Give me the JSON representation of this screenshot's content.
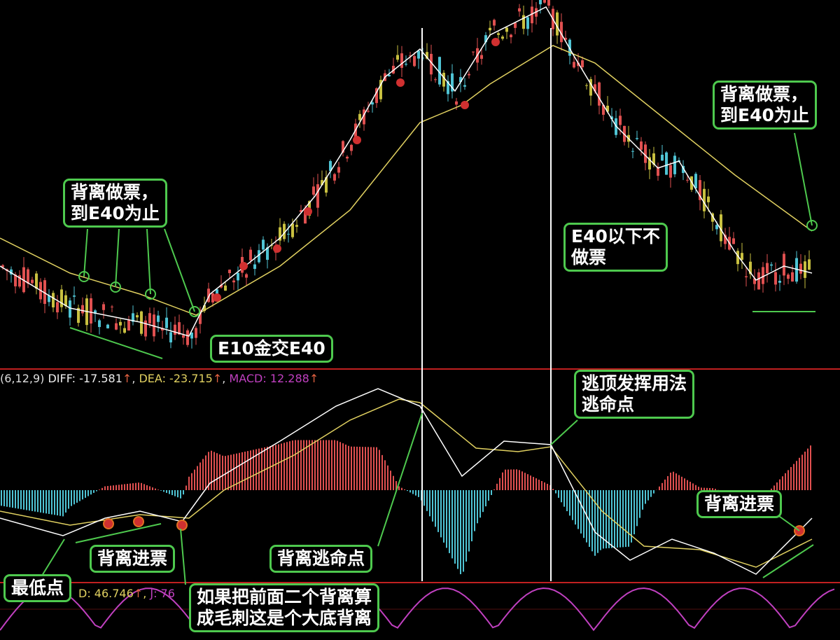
{
  "chart_data": {
    "type": "candlestick",
    "panels": [
      "price",
      "MACD",
      "KDJ"
    ],
    "grid": false,
    "price": {
      "E10": [
        [
          0,
          28
        ],
        [
          100,
          16
        ],
        [
          200,
          12
        ],
        [
          270,
          8
        ],
        [
          300,
          20
        ],
        [
          400,
          36
        ],
        [
          450,
          48
        ],
        [
          500,
          64
        ],
        [
          550,
          82
        ],
        [
          600,
          90
        ],
        [
          650,
          78
        ],
        [
          700,
          94
        ],
        [
          780,
          102
        ],
        [
          820,
          88
        ],
        [
          880,
          68
        ],
        [
          940,
          56
        ],
        [
          970,
          58
        ],
        [
          1000,
          48
        ],
        [
          1050,
          32
        ],
        [
          1080,
          24
        ],
        [
          1120,
          28
        ],
        [
          1160,
          26
        ]
      ],
      "E40": [
        [
          0,
          36
        ],
        [
          100,
          26
        ],
        [
          200,
          20
        ],
        [
          280,
          14
        ],
        [
          400,
          28
        ],
        [
          500,
          44
        ],
        [
          600,
          69
        ],
        [
          660,
          74
        ],
        [
          700,
          80
        ],
        [
          790,
          91
        ],
        [
          850,
          86
        ],
        [
          950,
          70
        ],
        [
          1050,
          54
        ],
        [
          1160,
          38
        ]
      ]
    },
    "macd": {
      "label": "(6,12,9)",
      "diff_label": "DIFF: -17.581",
      "dea_label": "DEA: -23.715",
      "macd_label": "MACD: 12.288",
      "DIFF": [
        [
          0,
          -40
        ],
        [
          90,
          -65
        ],
        [
          150,
          -40
        ],
        [
          200,
          -30
        ],
        [
          260,
          -45
        ],
        [
          300,
          10
        ],
        [
          400,
          70
        ],
        [
          480,
          120
        ],
        [
          540,
          145
        ],
        [
          600,
          120
        ],
        [
          660,
          20
        ],
        [
          720,
          70
        ],
        [
          787,
          65
        ],
        [
          850,
          -60
        ],
        [
          900,
          -100
        ],
        [
          960,
          -70
        ],
        [
          1020,
          -90
        ],
        [
          1080,
          -120
        ],
        [
          1140,
          -60
        ],
        [
          1160,
          -40
        ]
      ],
      "DEA": [
        [
          0,
          -30
        ],
        [
          100,
          -50
        ],
        [
          200,
          -35
        ],
        [
          270,
          -40
        ],
        [
          320,
          0
        ],
        [
          420,
          50
        ],
        [
          500,
          100
        ],
        [
          570,
          130
        ],
        [
          600,
          125
        ],
        [
          680,
          60
        ],
        [
          740,
          55
        ],
        [
          787,
          62
        ],
        [
          860,
          -30
        ],
        [
          920,
          -80
        ],
        [
          1000,
          -85
        ],
        [
          1080,
          -110
        ],
        [
          1160,
          -70
        ]
      ]
    },
    "kdj": {
      "d_label": "D: 46.746",
      "j_label": "J: 76"
    },
    "colors": {
      "up": "#e05050",
      "down": "#4fc4d4",
      "diff": "#ffffff",
      "dea": "#e0d060",
      "macd": "#c040c0",
      "annotation": "#4ec94e",
      "axis": "#c02020"
    }
  },
  "annotations": {
    "a1": "背离做票，\n到E40为止",
    "a2": "E10金交E40",
    "a3": "E40以下不\n做票",
    "a4": "背离做票，\n到E40为止",
    "a5": "逃顶发挥用法\n逃命点",
    "a6": "背离进票",
    "a7": "最低点",
    "a8": "背离逃命点",
    "a9": "如果把前面二个背离算\n成毛刺这是个大底背离",
    "a10": "背离进票"
  }
}
